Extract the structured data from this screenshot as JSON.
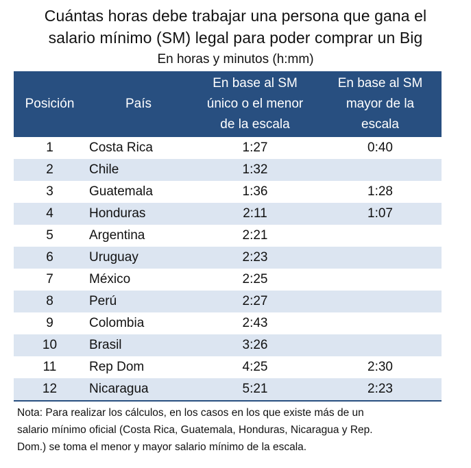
{
  "title_line1": "Cuántas horas debe trabajar una persona que gana el",
  "title_line2": "salario mínimo (SM) legal para poder comprar un Big",
  "subtitle": "En horas y minutos (h:mm)",
  "headers": {
    "pos": "Posición",
    "pais": "País",
    "a_line1": "En base al SM",
    "a_line2": "único o el menor",
    "a_line3": "de la escala",
    "b_line1": "En base al SM",
    "b_line2": "mayor de la",
    "b_line3": "escala"
  },
  "chart_data": {
    "type": "table",
    "title": "Cuántas horas debe trabajar una persona que gana el salario mínimo (SM) legal para poder comprar un Big",
    "subtitle": "En horas y minutos (h:mm)",
    "columns": [
      "Posición",
      "País",
      "En base al SM único o el menor de la escala",
      "En base al SM mayor de la escala"
    ],
    "rows": [
      {
        "pos": "1",
        "pais": "Costa Rica",
        "a": "1:27",
        "b": "0:40"
      },
      {
        "pos": "2",
        "pais": "Chile",
        "a": "1:32",
        "b": ""
      },
      {
        "pos": "3",
        "pais": "Guatemala",
        "a": "1:36",
        "b": "1:28"
      },
      {
        "pos": "4",
        "pais": "Honduras",
        "a": "2:11",
        "b": "1:07"
      },
      {
        "pos": "5",
        "pais": "Argentina",
        "a": "2:21",
        "b": ""
      },
      {
        "pos": "6",
        "pais": "Uruguay",
        "a": "2:23",
        "b": ""
      },
      {
        "pos": "7",
        "pais": "México",
        "a": "2:25",
        "b": ""
      },
      {
        "pos": "8",
        "pais": "Perú",
        "a": "2:27",
        "b": ""
      },
      {
        "pos": "9",
        "pais": "Colombia",
        "a": "2:43",
        "b": ""
      },
      {
        "pos": "10",
        "pais": "Brasil",
        "a": "3:26",
        "b": ""
      },
      {
        "pos": "11",
        "pais": "Rep Dom",
        "a": "4:25",
        "b": "2:30"
      },
      {
        "pos": "12",
        "pais": "Nicaragua",
        "a": "5:21",
        "b": "2:23"
      }
    ]
  },
  "note_line1": "Nota: Para realizar los cálculos, en los casos en los que existe más de un",
  "note_line2": "salario mínimo oficial (Costa Rica, Guatemala, Honduras, Nicaragua y Rep.",
  "note_line3": "Dom.) se toma el menor y mayor salario mínimo de la escala.",
  "colors": {
    "header_bg": "#284f80",
    "stripe": "#dce5f1"
  }
}
